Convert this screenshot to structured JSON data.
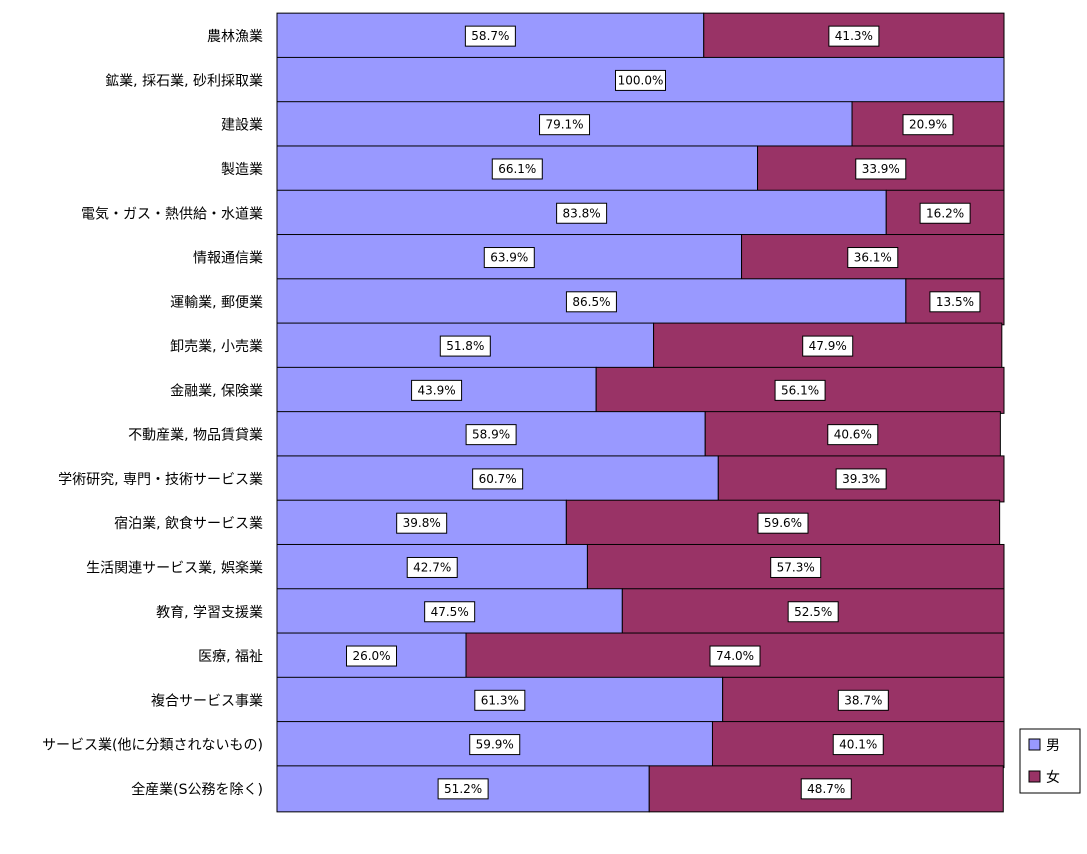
{
  "chart_data": {
    "type": "bar",
    "orientation": "horizontal",
    "stacked": true,
    "percent_stacked": true,
    "categories": [
      "農林漁業",
      "鉱業, 採石業, 砂利採取業",
      "建設業",
      "製造業",
      "電気・ガス・熱供給・水道業",
      "情報通信業",
      "運輸業, 郵便業",
      "卸売業, 小売業",
      "金融業, 保険業",
      "不動産業, 物品賃貸業",
      "学術研究, 専門・技術サービス業",
      "宿泊業, 飲食サービス業",
      "生活関連サービス業, 娯楽業",
      "教育, 学習支援業",
      "医療, 福祉",
      "複合サービス事業",
      "サービス業(他に分類されないもの)",
      "全産業(S公務を除く)"
    ],
    "series": [
      {
        "name": "男",
        "color": "#9999ff",
        "values": [
          58.7,
          100.0,
          79.1,
          66.1,
          83.8,
          63.9,
          86.5,
          51.8,
          43.9,
          58.9,
          60.7,
          39.8,
          42.7,
          47.5,
          26.0,
          61.3,
          59.9,
          51.2
        ],
        "labels": [
          "58.7%",
          "100.0%",
          "79.1%",
          "66.1%",
          "83.8%",
          "63.9%",
          "86.5%",
          "51.8%",
          "43.9%",
          "58.9%",
          "60.7%",
          "39.8%",
          "42.7%",
          "47.5%",
          "26.0%",
          "61.3%",
          "59.9%",
          "51.2%"
        ]
      },
      {
        "name": "女",
        "color": "#993366",
        "values": [
          41.3,
          0,
          20.9,
          33.9,
          16.2,
          36.1,
          13.5,
          47.9,
          56.1,
          40.6,
          39.3,
          59.6,
          57.3,
          52.5,
          74.0,
          38.7,
          40.1,
          48.7
        ],
        "labels": [
          "41.3%",
          "",
          "20.9%",
          "33.9%",
          "16.2%",
          "36.1%",
          "13.5%",
          "47.9%",
          "56.1%",
          "40.6%",
          "39.3%",
          "59.6%",
          "57.3%",
          "52.5%",
          "74.0%",
          "38.7%",
          "40.1%",
          "48.7%"
        ]
      }
    ],
    "xlim": [
      0,
      100
    ],
    "grid": false,
    "legend_position": "bottom-right"
  }
}
